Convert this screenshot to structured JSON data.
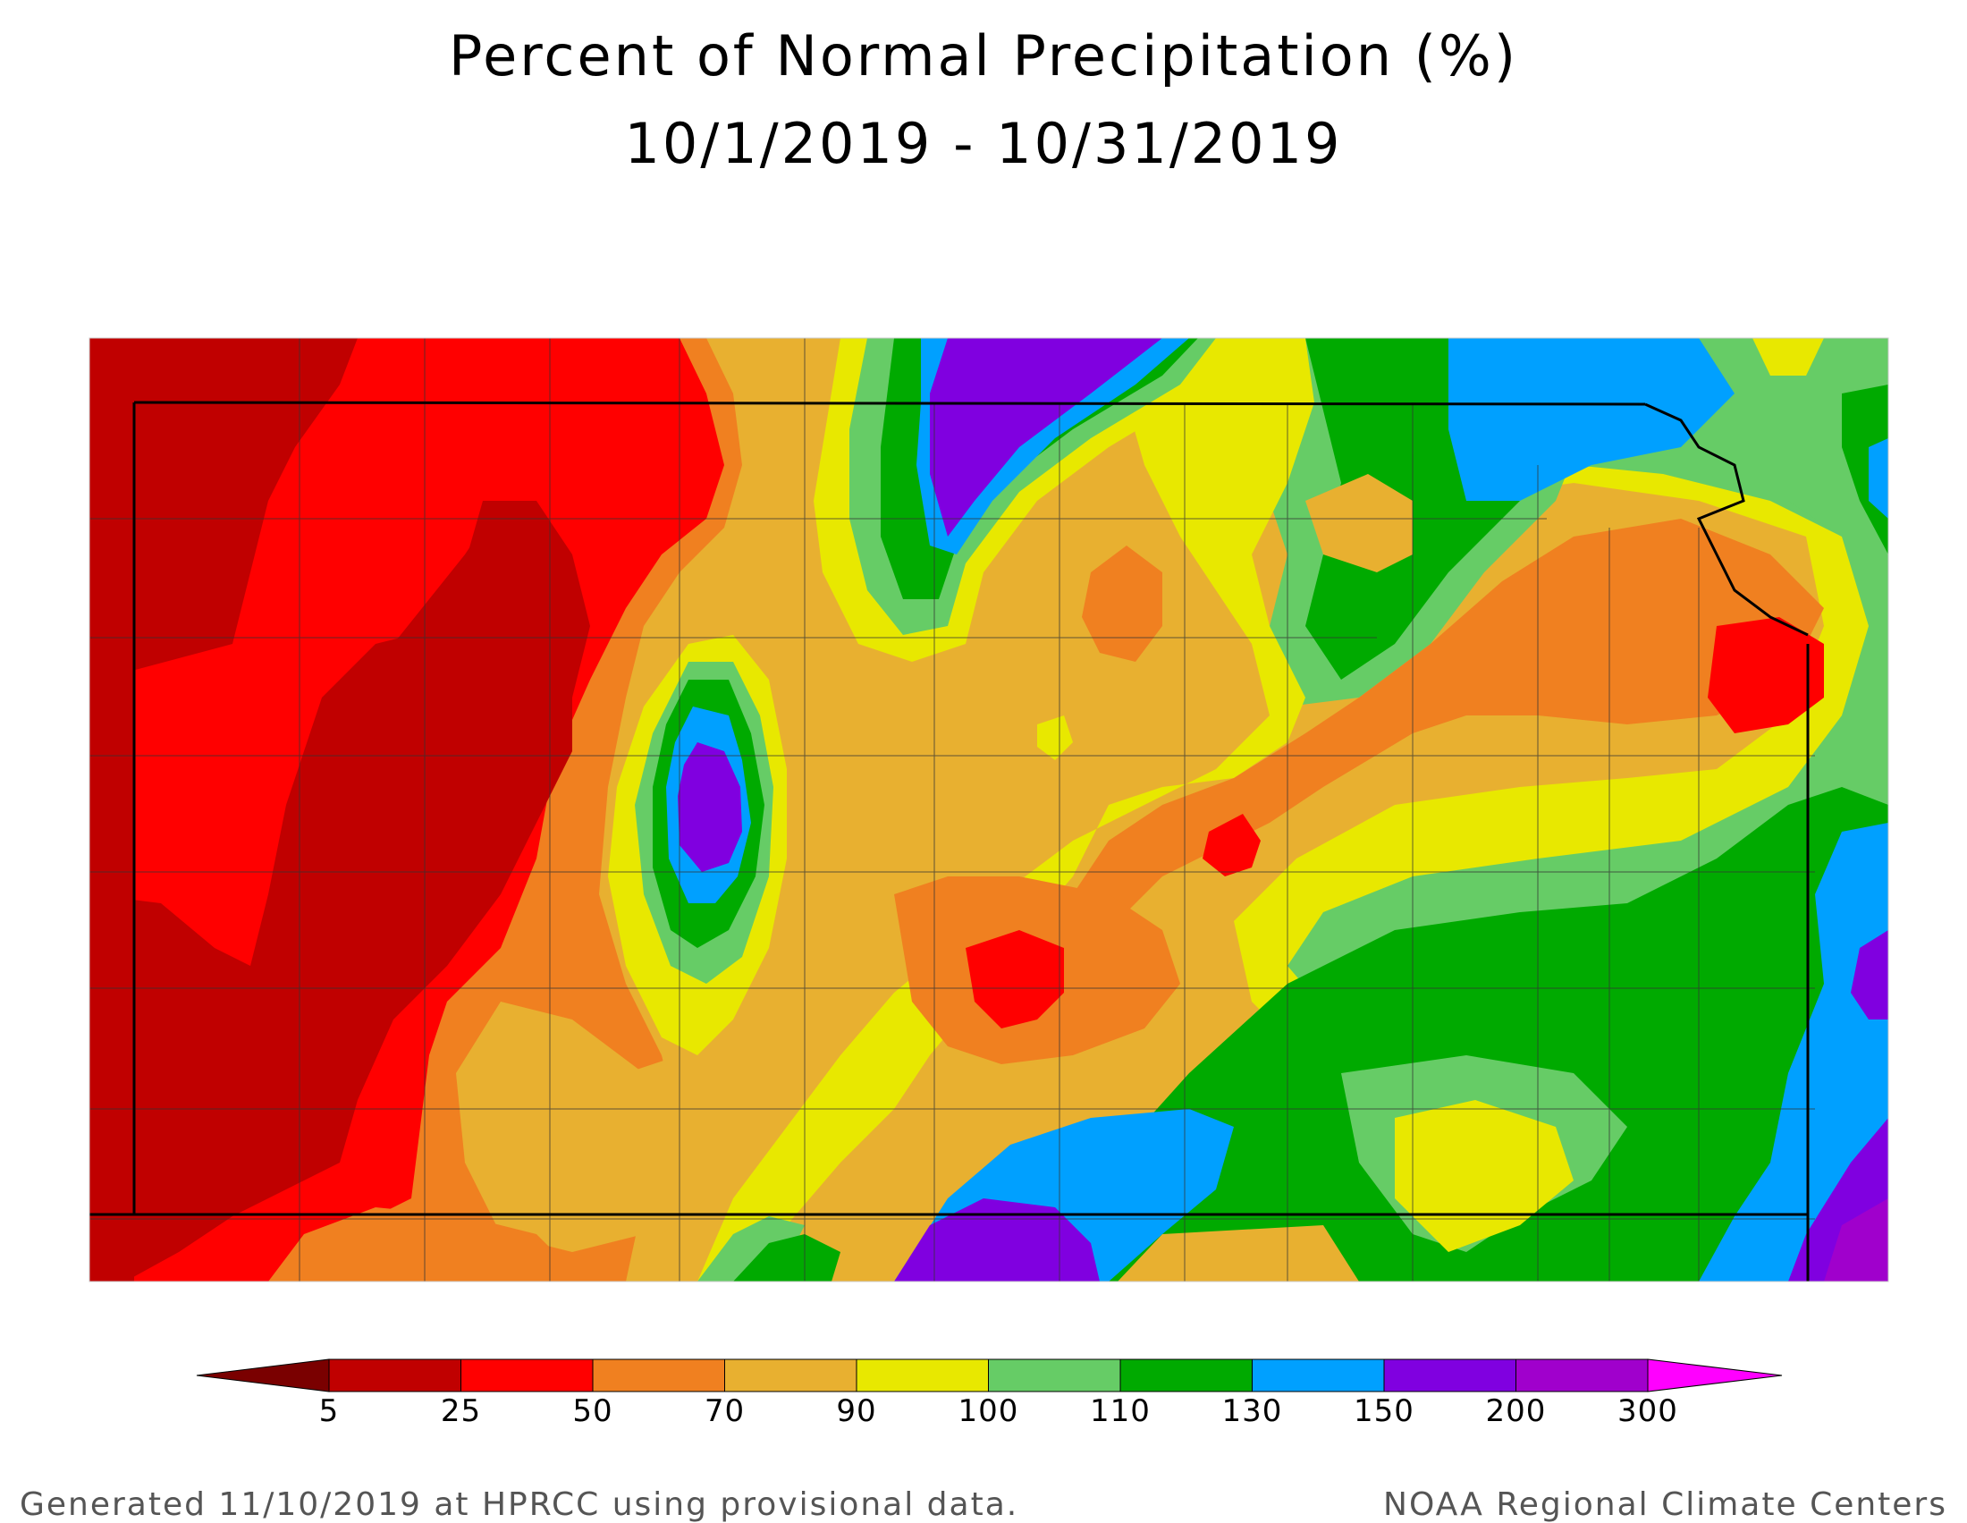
{
  "title": "Percent of Normal Precipitation (%)",
  "subtitle": "10/1/2019 - 10/31/2019",
  "legend": {
    "ticks": [
      "5",
      "25",
      "50",
      "70",
      "90",
      "100",
      "110",
      "130",
      "150",
      "200",
      "300"
    ],
    "colors": [
      "#7a0000",
      "#c00000",
      "#ff0000",
      "#f08020",
      "#e8b030",
      "#e8e800",
      "#66cc66",
      "#00aa00",
      "#00a0ff",
      "#8000e0",
      "#a000cc",
      "#ff00ff"
    ]
  },
  "footer": {
    "left": "Generated 11/10/2019 at HPRCC using provisional data.",
    "right": "NOAA Regional Climate Centers"
  }
}
